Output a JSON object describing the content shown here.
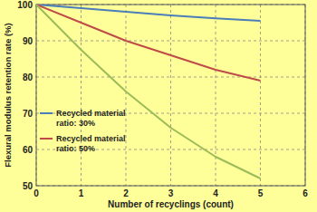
{
  "chart_data": {
    "type": "line",
    "x_label": "Number of recyclings (count)",
    "y_label": "Flexural modulus retention rate (%)",
    "x": [
      0,
      1,
      2,
      3,
      4,
      5
    ],
    "series": [
      {
        "name": "Recycled material ratio: 30%",
        "color": "#4a7ebb",
        "values": [
          100,
          99,
          98,
          97,
          96.2,
          95.5
        ]
      },
      {
        "name": "Recycled material ratio: 50%",
        "color": "#be4b48",
        "values": [
          100,
          95,
          90,
          86,
          82,
          79
        ]
      },
      {
        "color": "#9bbb59",
        "values": [
          100,
          87.5,
          76,
          66,
          58,
          52
        ]
      }
    ],
    "xlim": [
      0,
      6
    ],
    "xticks": [
      0,
      1,
      2,
      3,
      4,
      5,
      6
    ],
    "ylim": [
      50,
      100
    ],
    "yticks": [
      50,
      60,
      70,
      80,
      90,
      100
    ],
    "grid": true
  }
}
